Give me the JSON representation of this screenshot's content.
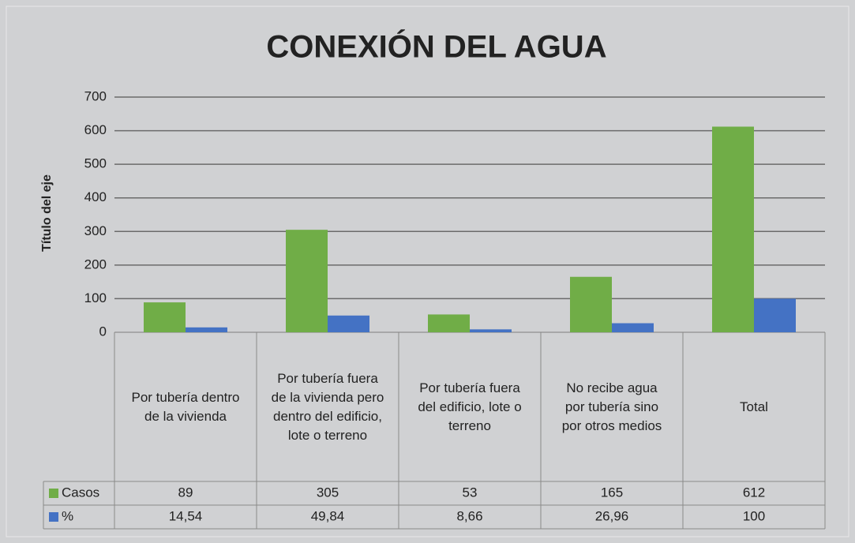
{
  "chart_data": {
    "type": "bar",
    "title": "CONEXIÓN DEL AGUA",
    "y_label": "Título del eje",
    "categories": [
      "Por tubería dentro de la vivienda",
      "Por tubería fuera de la vivienda pero dentro del edificio, lote o terreno",
      "Por tubería fuera del edificio, lote o terreno",
      "No recibe agua por tubería sino por otros medios",
      "Total"
    ],
    "series": [
      {
        "name": "Casos",
        "color": "#70ad47",
        "values": [
          89,
          305,
          53,
          165,
          612
        ]
      },
      {
        "name": "%",
        "color": "#4472c4",
        "values": [
          14.54,
          49.84,
          8.66,
          26.96,
          100
        ],
        "value_labels": [
          "14,54",
          "49,84",
          "8,66",
          "26,96",
          "100"
        ]
      }
    ],
    "ylim": [
      0,
      700
    ],
    "yticks": [
      0,
      100,
      200,
      300,
      400,
      500,
      600,
      700
    ],
    "grid": true,
    "data_table": true
  }
}
